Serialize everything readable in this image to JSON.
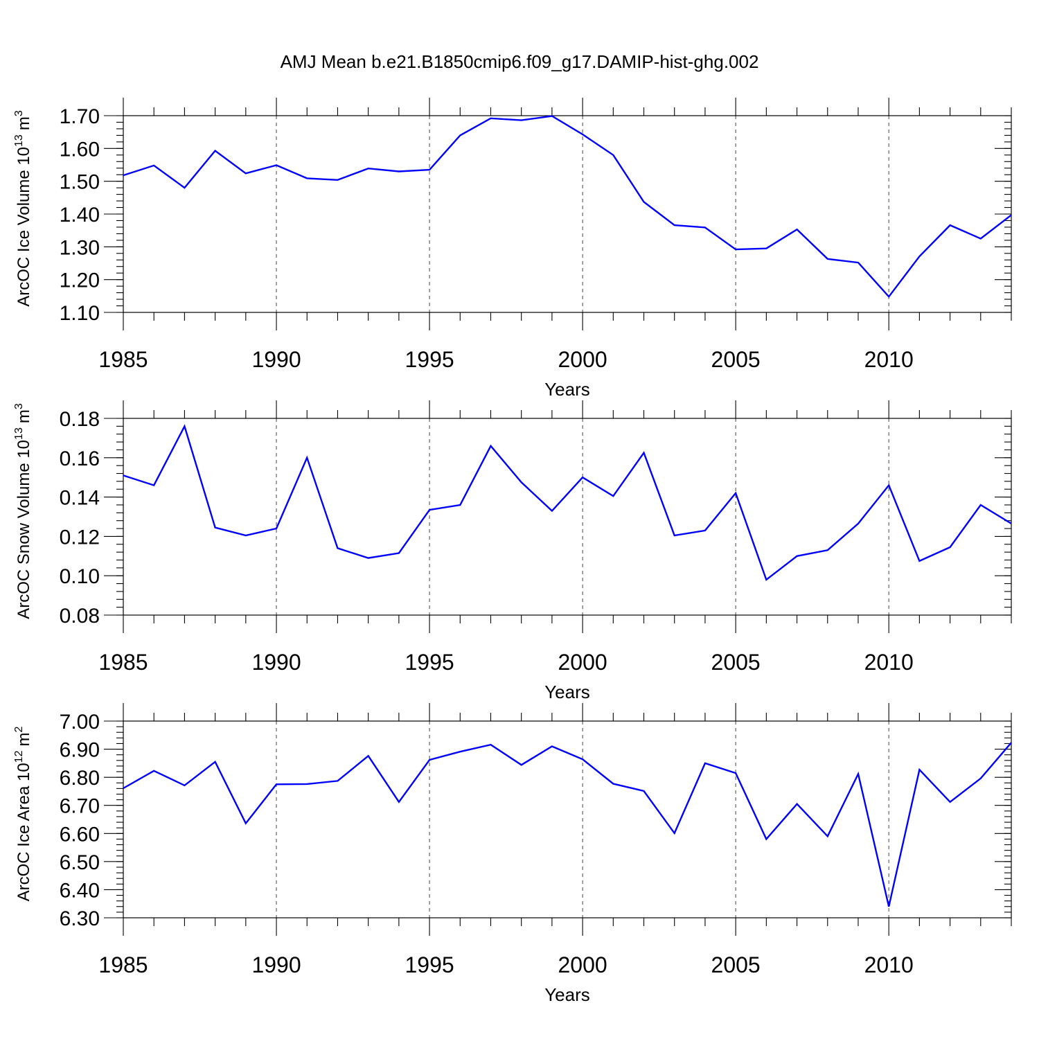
{
  "figure_title": "AMJ Mean b.e21.B1850cmip6.f09_g17.DAMIP-hist-ghg.002",
  "colors": {
    "line": "#0000ff",
    "axis": "#000000",
    "grid": "#444444",
    "background": "#ffffff"
  },
  "chart_data": [
    {
      "type": "line",
      "title": "AMJ Mean b.e21.B1850cmip6.f09_g17.DAMIP-hist-ghg.002",
      "xlabel": "Years",
      "ylabel_main": "ArcOC Ice Volume 10",
      "ylabel_exp": "13",
      "ylabel_unit_base": "m",
      "ylabel_unit_exp": "3",
      "xlim": [
        1985,
        2014
      ],
      "ylim": [
        1.1,
        1.7
      ],
      "x_ticks": [
        "1985",
        "1990",
        "1995",
        "2000",
        "2005",
        "2010"
      ],
      "y_ticks": [
        "1.10",
        "1.20",
        "1.30",
        "1.40",
        "1.50",
        "1.60",
        "1.70"
      ],
      "y_minor_step": 0.02,
      "grid": "vertical dashed at major x ticks",
      "series": [
        {
          "name": "ArcOC Ice Volume",
          "x": [
            1985,
            1986,
            1987,
            1988,
            1989,
            1990,
            1991,
            1992,
            1993,
            1994,
            1995,
            1996,
            1997,
            1998,
            1999,
            2000,
            2001,
            2002,
            2003,
            2004,
            2005,
            2006,
            2007,
            2008,
            2009,
            2010,
            2011,
            2012,
            2013,
            2014
          ],
          "values": [
            1.518,
            1.548,
            1.48,
            1.593,
            1.524,
            1.549,
            1.509,
            1.504,
            1.539,
            1.53,
            1.535,
            1.64,
            1.692,
            1.686,
            1.699,
            1.643,
            1.58,
            1.437,
            1.366,
            1.359,
            1.292,
            1.295,
            1.353,
            1.263,
            1.252,
            1.148,
            1.271,
            1.366,
            1.325,
            1.397
          ]
        }
      ]
    },
    {
      "type": "line",
      "xlabel": "Years",
      "ylabel_main": "ArcOC Snow Volume 10",
      "ylabel_exp": "13",
      "ylabel_unit_base": "m",
      "ylabel_unit_exp": "3",
      "xlim": [
        1985,
        2014
      ],
      "ylim": [
        0.08,
        0.18
      ],
      "x_ticks": [
        "1985",
        "1990",
        "1995",
        "2000",
        "2005",
        "2010"
      ],
      "y_ticks": [
        "0.08",
        "0.10",
        "0.12",
        "0.14",
        "0.16",
        "0.18"
      ],
      "y_minor_step": 0.004,
      "grid": "vertical dashed at major x ticks",
      "series": [
        {
          "name": "ArcOC Snow Volume",
          "x": [
            1985,
            1986,
            1987,
            1988,
            1989,
            1990,
            1991,
            1992,
            1993,
            1994,
            1995,
            1996,
            1997,
            1998,
            1999,
            2000,
            2001,
            2002,
            2003,
            2004,
            2005,
            2006,
            2007,
            2008,
            2009,
            2010,
            2011,
            2012,
            2013,
            2014
          ],
          "values": [
            0.151,
            0.146,
            0.176,
            0.1245,
            0.1205,
            0.124,
            0.16,
            0.114,
            0.109,
            0.1115,
            0.1335,
            0.136,
            0.166,
            0.1475,
            0.133,
            0.15,
            0.1405,
            0.1625,
            0.1205,
            0.123,
            0.142,
            0.098,
            0.11,
            0.113,
            0.1265,
            0.146,
            0.1075,
            0.1145,
            0.136,
            0.1265
          ]
        }
      ]
    },
    {
      "type": "line",
      "xlabel": "Years",
      "ylabel_main": "ArcOC Ice Area 10",
      "ylabel_exp": "12",
      "ylabel_unit_base": "m",
      "ylabel_unit_exp": "2",
      "xlim": [
        1985,
        2014
      ],
      "ylim": [
        6.3,
        7.0
      ],
      "x_ticks": [
        "1985",
        "1990",
        "1995",
        "2000",
        "2005",
        "2010"
      ],
      "y_ticks": [
        "6.30",
        "6.40",
        "6.50",
        "6.60",
        "6.70",
        "6.80",
        "6.90",
        "7.00"
      ],
      "y_minor_step": 0.02,
      "grid": "vertical dashed at major x ticks",
      "series": [
        {
          "name": "ArcOC Ice Area",
          "x": [
            1985,
            1986,
            1987,
            1988,
            1989,
            1990,
            1991,
            1992,
            1993,
            1994,
            1995,
            1996,
            1997,
            1998,
            1999,
            2000,
            2001,
            2002,
            2003,
            2004,
            2005,
            2006,
            2007,
            2008,
            2009,
            2010,
            2011,
            2012,
            2013,
            2014
          ],
          "values": [
            6.761,
            6.823,
            6.771,
            6.855,
            6.636,
            6.775,
            6.776,
            6.787,
            6.876,
            6.712,
            6.862,
            6.891,
            6.916,
            6.844,
            6.91,
            6.864,
            6.777,
            6.751,
            6.601,
            6.85,
            6.815,
            6.58,
            6.705,
            6.59,
            6.812,
            6.34,
            6.827,
            6.712,
            6.796,
            6.923
          ]
        }
      ]
    }
  ]
}
